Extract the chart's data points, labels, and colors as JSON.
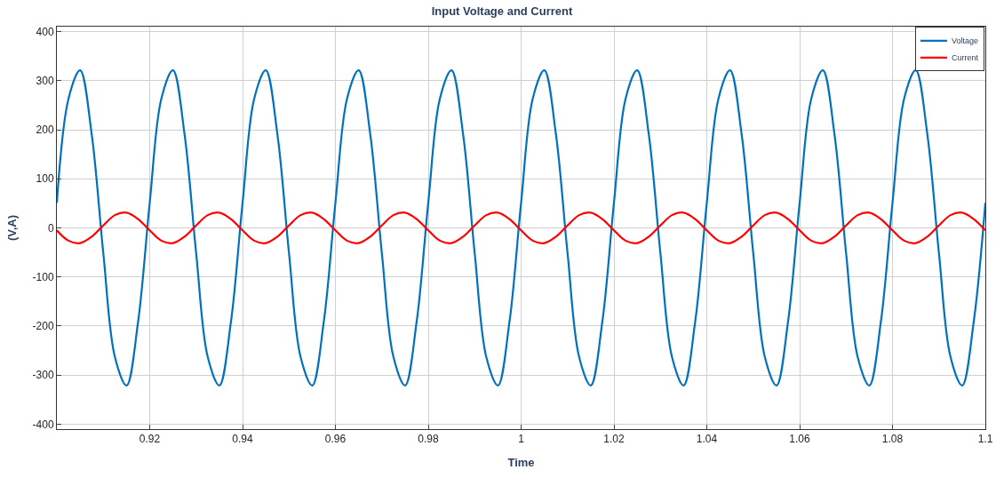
{
  "chart_data": {
    "type": "line",
    "title": "Input Voltage and Current",
    "xlabel": "Time",
    "ylabel": "(V,A)",
    "x": [
      0.9,
      0.9025,
      0.905,
      0.9075,
      0.91,
      0.9125,
      0.915,
      0.9175,
      0.92,
      0.9225,
      0.925,
      0.9275,
      0.93,
      0.9325,
      0.935,
      0.9375,
      0.94,
      0.9425,
      0.945,
      0.9475,
      0.95,
      0.9525,
      0.955,
      0.9575,
      0.96,
      0.9625,
      0.965,
      0.9675,
      0.97,
      0.9725,
      0.975,
      0.9775,
      0.98,
      0.9825,
      0.985,
      0.9875,
      0.99,
      0.9925,
      0.995,
      0.9975,
      1.0,
      1.0025,
      1.005,
      1.0075,
      1.01,
      1.0125,
      1.015,
      1.0175,
      1.02,
      1.0225,
      1.025,
      1.0275,
      1.03,
      1.0325,
      1.035,
      1.0375,
      1.04,
      1.0425,
      1.045,
      1.0475,
      1.05,
      1.0525,
      1.055,
      1.0575,
      1.06,
      1.0625,
      1.065,
      1.0675,
      1.07,
      1.0725,
      1.075,
      1.0775,
      1.08,
      1.0825,
      1.085,
      1.0875,
      1.09,
      1.0925,
      1.095,
      1.0975,
      1.1
    ],
    "series": [
      {
        "name": "Voltage",
        "color": "#0072bd",
        "values": [
          51,
          263,
          321,
          191,
          -51,
          -263,
          -321,
          -191,
          51,
          263,
          321,
          191,
          -51,
          -263,
          -321,
          -191,
          51,
          263,
          321,
          191,
          -51,
          -263,
          -321,
          -191,
          51,
          263,
          321,
          191,
          -51,
          -263,
          -321,
          -191,
          51,
          263,
          321,
          191,
          -51,
          -263,
          -321,
          -191,
          51,
          263,
          321,
          191,
          -51,
          -263,
          -321,
          -191,
          51,
          263,
          321,
          191,
          -51,
          -263,
          -321,
          -191,
          51,
          263,
          321,
          191,
          -51,
          -263,
          -321,
          -191,
          51,
          263,
          321,
          191,
          -51,
          -263,
          -321,
          -191,
          51,
          263,
          321,
          191,
          -51,
          -263,
          -321,
          -191,
          51
        ]
      },
      {
        "name": "Current",
        "color": "#ff0000",
        "values": [
          -5,
          -26,
          -31,
          -18,
          5,
          26,
          31,
          18,
          -5,
          -26,
          -31,
          -18,
          5,
          26,
          31,
          18,
          -5,
          -26,
          -31,
          -18,
          5,
          26,
          31,
          18,
          -5,
          -26,
          -31,
          -18,
          5,
          26,
          31,
          18,
          -5,
          -26,
          -31,
          -18,
          5,
          26,
          31,
          18,
          -5,
          -26,
          -31,
          -18,
          5,
          26,
          31,
          18,
          -5,
          -26,
          -31,
          -18,
          5,
          26,
          31,
          18,
          -5,
          -26,
          -31,
          -18,
          5,
          26,
          31,
          18,
          -5,
          -26,
          -31,
          -18,
          5,
          26,
          31,
          18,
          -5,
          -26,
          -31,
          -18,
          5,
          26,
          31,
          18,
          -5
        ]
      }
    ],
    "xlim": [
      0.9,
      1.1
    ],
    "xticks": [
      0.92,
      0.94,
      0.96,
      0.98,
      1,
      1.02,
      1.04,
      1.06,
      1.08,
      1.1
    ],
    "ylim": [
      -410,
      410
    ],
    "yticks": [
      -400,
      -300,
      -200,
      -100,
      0,
      100,
      200,
      300,
      400
    ],
    "grid": true,
    "legend": "top right",
    "marker": "none",
    "line_style": "solid"
  }
}
